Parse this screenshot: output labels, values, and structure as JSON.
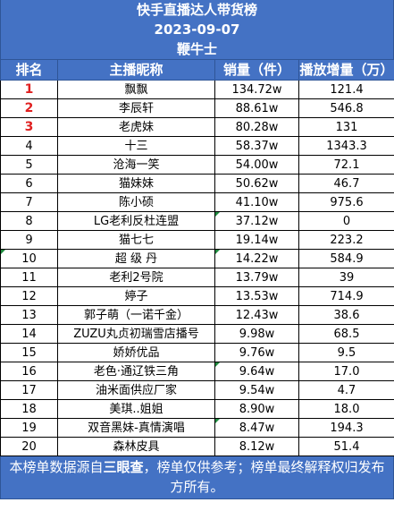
{
  "header": {
    "title": "快手直播达人带货榜",
    "date": "2023-09-07",
    "category": "鞭牛士"
  },
  "columns": {
    "rank": "排名",
    "name": "主播昵称",
    "sales": "销量（件）",
    "plays": "播放增量（万）"
  },
  "rows": [
    {
      "rank": "1",
      "name": "飘飘",
      "sales": "134.72w",
      "plays": "121.4"
    },
    {
      "rank": "2",
      "name": "李辰轩",
      "sales": "88.61w",
      "plays": "546.8"
    },
    {
      "rank": "3",
      "name": "老虎妹",
      "sales": "80.28w",
      "plays": "131"
    },
    {
      "rank": "4",
      "name": "十三",
      "sales": "58.37w",
      "plays": "1343.3"
    },
    {
      "rank": "5",
      "name": "沧海一笑",
      "sales": "54.00w",
      "plays": "72.1"
    },
    {
      "rank": "6",
      "name": "猫妹妹",
      "sales": "50.62w",
      "plays": "46.7"
    },
    {
      "rank": "7",
      "name": "陈小硕",
      "sales": "41.10w",
      "plays": "975.6"
    },
    {
      "rank": "8",
      "name": "LG老利反杜连盟",
      "sales": "37.12w",
      "plays": "0"
    },
    {
      "rank": "9",
      "name": "猫七七",
      "sales": "19.14w",
      "plays": "223.2"
    },
    {
      "rank": "10",
      "name": "超 级 丹",
      "sales": "14.22w",
      "plays": "584.9"
    },
    {
      "rank": "11",
      "name": "老利2号院",
      "sales": "13.79w",
      "plays": "39"
    },
    {
      "rank": "12",
      "name": "婷子",
      "sales": "13.53w",
      "plays": "714.9"
    },
    {
      "rank": "13",
      "name": "郭子萌（一诺千金）",
      "sales": "12.43w",
      "plays": "38.6"
    },
    {
      "rank": "14",
      "name": "ZUZU丸贞初瑞雪店播号",
      "sales": "9.98w",
      "plays": "68.5"
    },
    {
      "rank": "15",
      "name": "娇娇优品",
      "sales": "9.76w",
      "plays": "9.5"
    },
    {
      "rank": "16",
      "name": "老色·通辽铁三角",
      "sales": "9.64w",
      "plays": "17.0"
    },
    {
      "rank": "17",
      "name": "油米面供应厂家",
      "sales": "9.54w",
      "plays": "4.7"
    },
    {
      "rank": "18",
      "name": "美琪..姐姐",
      "sales": "8.90w",
      "plays": "18.0"
    },
    {
      "rank": "19",
      "name": "双音黑妹-真情演唱",
      "sales": "8.47w",
      "plays": "194.3"
    },
    {
      "rank": "20",
      "name": "森林皮具",
      "sales": "8.12w",
      "plays": "51.4"
    }
  ],
  "footer": {
    "text_before": "本榜单数据源自",
    "source": "三眼查",
    "text_after": "，榜单仅供参考；榜单最终解释权归发布方所有。"
  },
  "colors": {
    "header_bg": "#4472c4",
    "top3_text": "#e02020",
    "marker": "#1e8a3e"
  }
}
